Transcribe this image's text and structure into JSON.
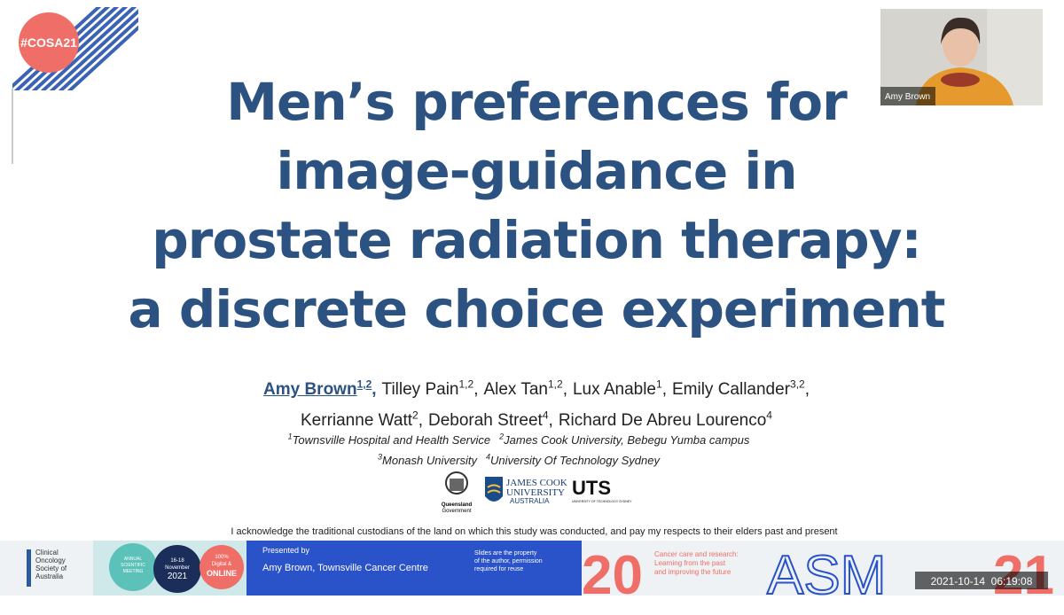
{
  "corner_badge": "#COSA21",
  "webcam": {
    "label": "Amy Brown"
  },
  "title_lines": [
    "Men’s preferences for",
    "image-guidance in",
    "prostate radiation therapy:",
    "a discrete choice experiment"
  ],
  "authors": [
    [
      {
        "name": "Amy Brown",
        "affil": "1,2",
        "sep": ","
      },
      {
        "name": "Tilley Pain",
        "affil": "1,2",
        "sep": ","
      },
      {
        "name": "Alex Tan",
        "affil": "1,2",
        "sep": ","
      },
      {
        "name": "Lux Anable",
        "affil": "1",
        "sep": ","
      },
      {
        "name": "Emily Callander",
        "affil": "3,2",
        "sep": ","
      }
    ],
    [
      {
        "name": "Kerrianne Watt",
        "affil": "2",
        "sep": ","
      },
      {
        "name": "Deborah Street",
        "affil": "4",
        "sep": ","
      },
      {
        "name": "Richard De Abreu Lourenco",
        "affil": "4"
      }
    ]
  ],
  "affiliations": [
    [
      {
        "num": "1",
        "text": "Townsville Hospital and Health Service"
      },
      {
        "num": "2",
        "text": "James Cook University, Bebegu Yumba campus"
      }
    ],
    [
      {
        "num": "3",
        "text": "Monash University"
      },
      {
        "num": "4",
        "text": "University Of Technology Sydney"
      }
    ]
  ],
  "logos": {
    "queensland": [
      "Queensland",
      "Government"
    ],
    "jcu": [
      "JAMES COOK",
      "UNIVERSITY",
      "AUSTRALIA"
    ],
    "uts": [
      "UTS",
      "UNIVERSITY OF TECHNOLOGY SYDNEY"
    ]
  },
  "acknowledgement": "I acknowledge the traditional custodians of the land on which this study was conducted, and pay my respects to their elders past and present",
  "banner": {
    "cosa": [
      "Clinical",
      "Oncology",
      "Society of",
      "Australia"
    ],
    "meeting": [
      "ANNUAL",
      "SCIENTIFIC",
      "MEETING"
    ],
    "dates": [
      "16-18",
      "November",
      "2021"
    ],
    "online": [
      "100%",
      "Digital &",
      "ONLINE"
    ],
    "presented_by": "Presented by",
    "presenter": "Amy Brown, Townsville Cancer Centre",
    "notice": [
      "Slides are the property",
      "of the author, permission",
      "required for reuse"
    ],
    "year_left": "20",
    "theme": [
      "Cancer care and research:",
      "Learning from the past",
      "and improving the future"
    ],
    "asm": "ASM",
    "year_right": "21"
  },
  "timestamp": "2021-10-14  06:19:08"
}
